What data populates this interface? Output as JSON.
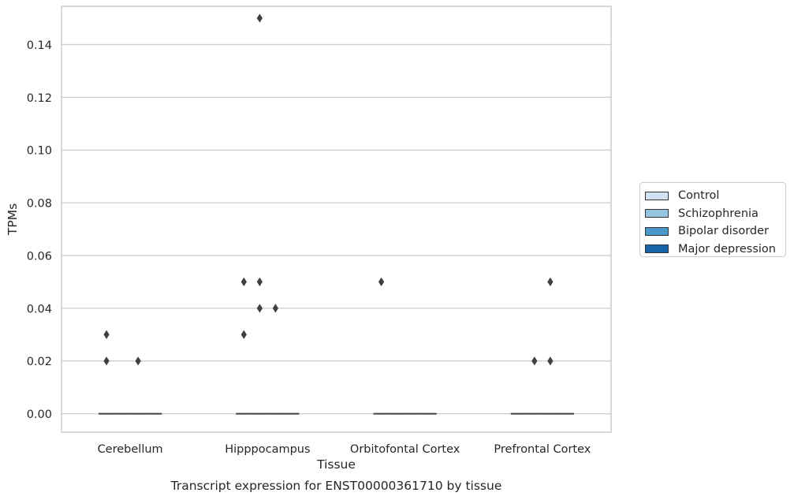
{
  "chart_data": {
    "type": "box",
    "xlabel": "Tissue",
    "ylabel": "TPMs",
    "caption": "Transcript expression for ENST00000361710 by tissue",
    "categories": [
      "Cerebellum",
      "Hipppocampus",
      "Orbitofontal Cortex",
      "Prefrontal Cortex"
    ],
    "ylim": [
      -0.007,
      0.1545
    ],
    "yticks": [
      0.0,
      0.02,
      0.04,
      0.06,
      0.08,
      0.1,
      0.12,
      0.14
    ],
    "ytick_labels": [
      "0.00",
      "0.02",
      "0.04",
      "0.06",
      "0.08",
      "0.10",
      "0.12",
      "0.14"
    ],
    "grid": "horizontal",
    "legend_position": "right",
    "series": [
      {
        "name": "Control",
        "color": "#d0e1f2",
        "medians": [
          0,
          0,
          0,
          0
        ],
        "outliers": [
          [
            0.02,
            0.03
          ],
          [
            0.03,
            0.05
          ],
          [
            0.05
          ],
          []
        ]
      },
      {
        "name": "Schizophrenia",
        "color": "#94c4df",
        "medians": [
          0,
          0,
          0,
          0
        ],
        "outliers": [
          [],
          [
            0.15,
            0.05,
            0.04
          ],
          [],
          [
            0.02
          ]
        ]
      },
      {
        "name": "Bipolar disorder",
        "color": "#4a98c9",
        "medians": [
          0,
          0,
          0,
          0
        ],
        "outliers": [
          [
            0.02
          ],
          [
            0.04
          ],
          [],
          [
            0.05,
            0.02
          ]
        ]
      },
      {
        "name": "Major depression",
        "color": "#1764ab",
        "medians": [
          0,
          0,
          0,
          0
        ],
        "outliers": [
          [],
          [],
          [],
          []
        ]
      }
    ]
  }
}
